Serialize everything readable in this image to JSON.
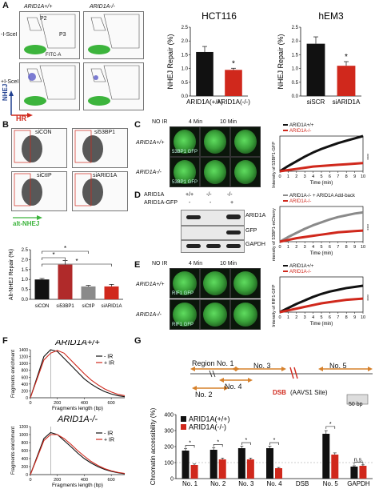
{
  "panels": {
    "A": "A",
    "B": "B",
    "C": "C",
    "D": "D",
    "E": "E",
    "F": "F",
    "G": "G"
  },
  "a": {
    "col_wt": "ARID1A+/+",
    "col_ko": "ARID1A-/-",
    "row1": "-I-SceI",
    "row2": "+I-SceI",
    "y_axis": "NHEJ",
    "x_axis": "HR",
    "gates": {
      "p2": "P2",
      "p3": "P3",
      "p4": "P4"
    },
    "fitc": "FITC-A"
  },
  "b": {
    "labels": [
      "siCON",
      "si53BP1",
      "siCtIP",
      "siARID1A"
    ],
    "x_axis": "alt-NHEJ"
  },
  "c": {
    "col_labels": [
      "NO IR",
      "4 Min",
      "10 Min"
    ],
    "row_wt": "ARID1A+/+",
    "row_ko": "ARID1A-/-",
    "cell_label": "53BP1 GFP",
    "legend_wt": "ARID1A+/+",
    "legend_ko": "ARID1A-/-",
    "ylabel": "Intensity of 53BP1-GFP",
    "xlabel": "Time (min)",
    "stars": "****"
  },
  "d": {
    "row1_label": "ARID1A",
    "row2_label": "ARID1A-GFP",
    "row1_vals": [
      "+/+",
      "-/-",
      "-/-"
    ],
    "row2_vals": [
      "-",
      "-",
      "+"
    ],
    "bands": [
      "ARID1A",
      "GFP",
      "GAPDH"
    ],
    "legend_addback": "ARID1A-/- + ARID1A Add-back",
    "legend_ko": "ARID1A-/-",
    "ylabel": "Intensity of 53BP1-mCherry",
    "xlabel": "Time (min)",
    "stars": "****"
  },
  "e": {
    "col_labels": [
      "NO IR",
      "4 Min",
      "10 Min"
    ],
    "row_wt": "ARID1A+/+",
    "row_ko": "ARID1A-/-",
    "cell_label": "RIF1 GFP",
    "legend_wt": "ARID1A+/+",
    "legend_ko": "ARID1A-/-",
    "ylabel": "Intensity of RIF1-GFP",
    "xlabel": "Time (min)",
    "stars": "****"
  },
  "f": {
    "title_wt": "ARID1A+/+",
    "title_ko": "ARID1A-/-",
    "legend_minus": "- IR",
    "legend_plus": "+ IR",
    "ylabel": "Fragments enrichment",
    "xlabel": "Fragments length (bp)"
  },
  "g": {
    "regions": [
      "Region No. 1",
      "No. 2",
      "No. 3",
      "No. 4",
      "No. 5"
    ],
    "dsb": "DSB",
    "dsb_site": "(AAVS1 Site)",
    "scale": "50 bp",
    "legend_wt": "ARID1A(+/+)",
    "legend_ko": "ARID1A(-/-)",
    "ylabel": "Chromatin accessibility (%)"
  },
  "colors": {
    "black": "#111111",
    "red": "#d0281c",
    "gray": "#8a8a8a",
    "green": "#3cb43c",
    "blue": "#1f3f8f",
    "arrow_orange": "#d6802a"
  },
  "chart_data": [
    {
      "id": "hct116",
      "type": "bar",
      "title": "HCT116",
      "categories": [
        "ARID1A(+/+)",
        "ARID1A(-/-)"
      ],
      "values": [
        1.6,
        0.95
      ],
      "errors": [
        0.2,
        0.06
      ],
      "colors": [
        "#111111",
        "#d0281c"
      ],
      "ylabel": "NHEJ Repair (%)",
      "ylim": [
        0,
        2.5
      ],
      "yticks": [
        0.0,
        0.5,
        1.0,
        1.5,
        2.0,
        2.5
      ],
      "annotation": "*"
    },
    {
      "id": "hem3",
      "type": "bar",
      "title": "hEM3",
      "categories": [
        "siSCR",
        "siARID1A"
      ],
      "values": [
        1.9,
        1.1
      ],
      "errors": [
        0.25,
        0.15
      ],
      "colors": [
        "#111111",
        "#d0281c"
      ],
      "ylabel": "NHEJ Repair (%)",
      "ylim": [
        0,
        2.5
      ],
      "yticks": [
        0.0,
        0.5,
        1.0,
        1.5,
        2.0,
        2.5
      ],
      "annotation": "*"
    },
    {
      "id": "altnhej",
      "type": "bar",
      "categories": [
        "siCON",
        "si53BP1",
        "siCtIP",
        "siARID1A"
      ],
      "values": [
        1.0,
        1.75,
        0.65,
        0.65
      ],
      "errors": [
        0.05,
        0.2,
        0.05,
        0.1
      ],
      "colors": [
        "#111111",
        "#b02a2a",
        "#8a8a8a",
        "#d0281c"
      ],
      "ylabel": "Alt-NHEJ Repair (%)",
      "ylim": [
        0.0,
        2.5
      ],
      "yticks": [
        0.0,
        0.5,
        1.0,
        1.5,
        2.0,
        2.5
      ],
      "significance": [
        "*",
        "*",
        "*"
      ]
    },
    {
      "id": "chromatin",
      "type": "bar",
      "categories": [
        "No. 1",
        "No. 2",
        "No. 3",
        "No. 4",
        "DSB",
        "No. 5",
        "GAPDH"
      ],
      "series": [
        {
          "name": "ARID1A(+/+)",
          "values": [
            175,
            180,
            190,
            190,
            null,
            280,
            75
          ],
          "color": "#111111"
        },
        {
          "name": "ARID1A(-/-)",
          "values": [
            85,
            120,
            120,
            65,
            null,
            150,
            80
          ],
          "color": "#d0281c"
        }
      ],
      "ylabel": "Chromatin accessibility (%)",
      "ylim": [
        0,
        400
      ],
      "yticks": [
        0,
        100,
        200,
        300,
        400
      ],
      "significance": [
        "*",
        "*",
        "*",
        "*",
        "*",
        "n.s."
      ]
    },
    {
      "id": "kinetics_c",
      "type": "line",
      "x": [
        0,
        1,
        2,
        3,
        4,
        5,
        6,
        7,
        8,
        9,
        10
      ],
      "series": [
        {
          "name": "ARID1A+/+",
          "values": [
            1.0,
            1.09,
            1.17,
            1.25,
            1.32,
            1.38,
            1.43,
            1.48,
            1.52,
            1.56,
            1.6
          ],
          "color": "#111111"
        },
        {
          "name": "ARID1A-/-",
          "values": [
            1.0,
            1.02,
            1.04,
            1.06,
            1.08,
            1.09,
            1.1,
            1.11,
            1.12,
            1.13,
            1.14
          ],
          "color": "#d0281c"
        }
      ],
      "xlabel": "Time (min)",
      "xlim": [
        0,
        10
      ],
      "ylim": [
        1.0,
        1.6
      ],
      "xticks": [
        0,
        1,
        2,
        3,
        4,
        5,
        6,
        7,
        8,
        9,
        10
      ]
    },
    {
      "id": "kinetics_d",
      "type": "line",
      "x": [
        0,
        1,
        2,
        3,
        4,
        5,
        6,
        7,
        8,
        9,
        10
      ],
      "series": [
        {
          "name": "ARID1A-/- + ARID1A Add-back",
          "values": [
            1.0,
            1.08,
            1.15,
            1.22,
            1.28,
            1.33,
            1.38,
            1.42,
            1.45,
            1.48,
            1.5
          ],
          "color": "#8a8a8a"
        },
        {
          "name": "ARID1A-/-",
          "values": [
            1.0,
            1.03,
            1.06,
            1.08,
            1.1,
            1.12,
            1.14,
            1.16,
            1.17,
            1.18,
            1.19
          ],
          "color": "#d0281c"
        }
      ],
      "xlabel": "Time (min)",
      "xlim": [
        0,
        10
      ],
      "ylim": [
        1.0,
        1.6
      ],
      "xticks": [
        0,
        1,
        2,
        3,
        4,
        5,
        6,
        7,
        8,
        9,
        10
      ]
    },
    {
      "id": "kinetics_e",
      "type": "line",
      "x": [
        0,
        1,
        2,
        3,
        4,
        5,
        6,
        7,
        8,
        9,
        10
      ],
      "series": [
        {
          "name": "ARID1A+/+",
          "values": [
            1.0,
            1.07,
            1.14,
            1.2,
            1.26,
            1.31,
            1.35,
            1.38,
            1.41,
            1.43,
            1.45
          ],
          "color": "#111111"
        },
        {
          "name": "ARID1A-/-",
          "values": [
            1.0,
            1.03,
            1.06,
            1.09,
            1.12,
            1.15,
            1.17,
            1.19,
            1.21,
            1.22,
            1.23
          ],
          "color": "#d0281c"
        }
      ],
      "xlabel": "Time (min)",
      "xlim": [
        0,
        10
      ],
      "ylim": [
        1.0,
        1.6
      ],
      "xticks": [
        0,
        1,
        2,
        3,
        4,
        5,
        6,
        7,
        8,
        9,
        10
      ]
    },
    {
      "id": "fragments_wt",
      "type": "line",
      "title": "ARID1A+/+",
      "x": [
        0,
        50,
        100,
        150,
        200,
        250,
        300,
        350,
        400,
        450,
        500,
        550,
        600,
        650,
        700
      ],
      "series": [
        {
          "name": "- IR",
          "values": [
            0,
            600,
            1200,
            1400,
            1350,
            1150,
            950,
            750,
            550,
            400,
            280,
            180,
            110,
            60,
            30
          ],
          "color": "#111111"
        },
        {
          "name": "+ IR",
          "values": [
            0,
            550,
            1100,
            1300,
            1380,
            1300,
            1100,
            900,
            700,
            520,
            380,
            260,
            170,
            100,
            60
          ],
          "color": "#d0281c"
        }
      ],
      "xlabel": "Fragments length (bp)",
      "ylabel": "Fragments enrichment",
      "xlim": [
        0,
        700
      ],
      "ylim": [
        0,
        1400
      ],
      "xticks": [
        0,
        200,
        400,
        600
      ],
      "yticks": [
        0,
        200,
        400,
        600,
        800,
        1000,
        1200,
        1400
      ]
    },
    {
      "id": "fragments_ko",
      "type": "line",
      "title": "ARID1A-/-",
      "x": [
        0,
        50,
        100,
        150,
        200,
        250,
        300,
        350,
        400,
        450,
        500,
        550,
        600,
        650,
        700
      ],
      "series": [
        {
          "name": "- IR",
          "values": [
            0,
            450,
            900,
            1050,
            1000,
            850,
            700,
            540,
            400,
            290,
            200,
            130,
            80,
            45,
            20
          ],
          "color": "#111111"
        },
        {
          "name": "+ IR",
          "values": [
            0,
            420,
            850,
            1000,
            1000,
            900,
            760,
            600,
            460,
            330,
            230,
            150,
            95,
            55,
            30
          ],
          "color": "#d0281c"
        }
      ],
      "xlabel": "Fragments length (bp)",
      "ylabel": "Fragments enrichment",
      "xlim": [
        0,
        700
      ],
      "ylim": [
        0,
        1200
      ],
      "xticks": [
        0,
        200,
        400,
        600
      ],
      "yticks": [
        0,
        200,
        400,
        600,
        800,
        1000,
        1200
      ]
    }
  ]
}
